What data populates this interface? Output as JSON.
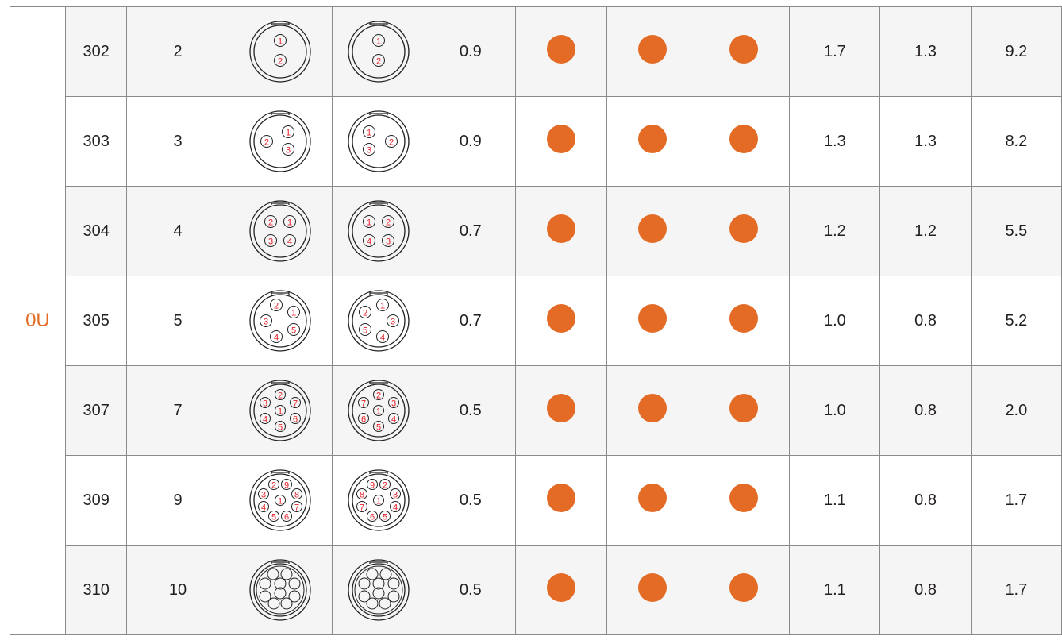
{
  "series": "0U",
  "colors": {
    "dot": "#e46b25",
    "series": "#e36c25",
    "pin_label": "#e8202a"
  },
  "rows": [
    {
      "code": "302",
      "pins": "2",
      "male": [
        "1",
        "2"
      ],
      "female": [
        "1",
        "2"
      ],
      "v1": "0.9",
      "dots": [
        true,
        true,
        true
      ],
      "a": "1.7",
      "b": "1.3",
      "c": "9.2"
    },
    {
      "code": "303",
      "pins": "3",
      "male": [
        "1",
        "2",
        "3"
      ],
      "female": [
        "1",
        "2",
        "3"
      ],
      "v1": "0.9",
      "dots": [
        true,
        true,
        true
      ],
      "a": "1.3",
      "b": "1.3",
      "c": "8.2"
    },
    {
      "code": "304",
      "pins": "4",
      "male": [
        "2",
        "1",
        "3",
        "4"
      ],
      "female": [
        "1",
        "2",
        "4",
        "3"
      ],
      "v1": "0.7",
      "dots": [
        true,
        true,
        true
      ],
      "a": "1.2",
      "b": "1.2",
      "c": "5.5"
    },
    {
      "code": "305",
      "pins": "5",
      "male": [
        "2",
        "1",
        "3",
        "5",
        "4"
      ],
      "female": [
        "1",
        "2",
        "3",
        "5",
        "4"
      ],
      "v1": "0.7",
      "dots": [
        true,
        true,
        true
      ],
      "a": "1.0",
      "b": "0.8",
      "c": "5.2"
    },
    {
      "code": "307",
      "pins": "7",
      "male": [
        "2",
        "3",
        "7",
        "1",
        "4",
        "6",
        "5"
      ],
      "female": [
        "2",
        "7",
        "3",
        "1",
        "6",
        "4",
        "5"
      ],
      "v1": "0.5",
      "dots": [
        true,
        true,
        true
      ],
      "a": "1.0",
      "b": "0.8",
      "c": "2.0"
    },
    {
      "code": "309",
      "pins": "9",
      "male": [
        "2",
        "9",
        "3",
        "8",
        "1",
        "4",
        "7",
        "5",
        "6"
      ],
      "female": [
        "9",
        "2",
        "8",
        "3",
        "1",
        "7",
        "4",
        "6",
        "5"
      ],
      "v1": "0.5",
      "dots": [
        true,
        true,
        true
      ],
      "a": "1.1",
      "b": "0.8",
      "c": "1.7"
    },
    {
      "code": "310",
      "pins": "10",
      "male": [],
      "female": [],
      "v1": "0.5",
      "dots": [
        true,
        true,
        true
      ],
      "a": "1.1",
      "b": "0.8",
      "c": "1.7"
    }
  ]
}
